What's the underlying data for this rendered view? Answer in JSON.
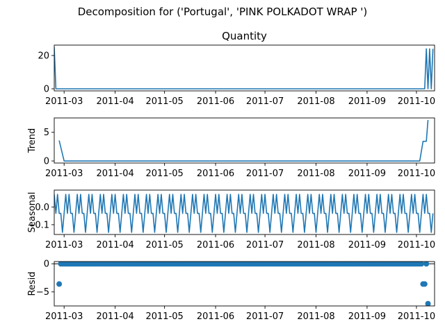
{
  "chart_data": {
    "type": "line",
    "title": "Decomposition for ('Portugal', 'PINK POLKADOT WRAP ')",
    "line_color": "#1f77b4",
    "x_range": [
      "2011-02-23",
      "2011-10-12"
    ],
    "x_tick_labels": [
      "2011-03",
      "2011-04",
      "2011-05",
      "2011-06",
      "2011-07",
      "2011-08",
      "2011-09",
      "2011-10"
    ],
    "x_ticks": [
      "2011-03-01",
      "2011-04-01",
      "2011-05-01",
      "2011-06-01",
      "2011-07-01",
      "2011-08-01",
      "2011-09-01",
      "2011-10-01"
    ],
    "panels": [
      {
        "id": "observed",
        "type": "line",
        "title": "Quantity",
        "ylabel": "",
        "ylim": [
          -1.25,
          26.25
        ],
        "yticks": [
          0,
          20
        ],
        "ytick_labels": [
          "0",
          "20"
        ],
        "x": [
          "2011-02-23",
          "2011-02-24",
          "2011-10-06",
          "2011-10-07",
          "2011-10-08",
          "2011-10-09",
          "2011-10-10",
          "2011-10-11"
        ],
        "values": [
          25,
          0,
          0,
          24,
          0,
          24,
          0,
          24
        ]
      },
      {
        "id": "trend",
        "type": "line",
        "ylabel": "Trend",
        "ylim": [
          -0.36,
          7.5
        ],
        "yticks": [
          0,
          5
        ],
        "ytick_labels": [
          "0",
          "5"
        ],
        "x": [
          "2011-02-26",
          "2011-03-01",
          "2011-10-03",
          "2011-10-05",
          "2011-10-06",
          "2011-10-07",
          "2011-10-08"
        ],
        "values": [
          3.57,
          0,
          0,
          3.43,
          3.43,
          3.43,
          7.14
        ]
      },
      {
        "id": "seasonal",
        "type": "line",
        "ylabel": "Seasonal",
        "ylim": [
          -0.155,
          0.095
        ],
        "yticks": [
          0.0,
          -0.1
        ],
        "ytick_labels": [
          "0.0",
          "−0.1"
        ],
        "period_days": 7,
        "weekly_pattern": [
          0.071,
          -0.036,
          0.071,
          -0.036,
          -0.036,
          -0.143,
          -0.036
        ],
        "x_start": "2011-02-23",
        "x_end": "2011-10-11"
      },
      {
        "id": "resid",
        "type": "scatter",
        "ylabel": "Resid",
        "ylim": [
          -7.5,
          0.4
        ],
        "yticks": [
          0,
          -5
        ],
        "ytick_labels": [
          "0",
          "−5"
        ],
        "x_start": "2011-02-26",
        "x_end": "2011-10-08",
        "baseline": 0,
        "outliers": [
          {
            "x": "2011-02-26",
            "y": -3.6
          },
          {
            "x": "2011-10-05",
            "y": -3.6
          },
          {
            "x": "2011-10-06",
            "y": -3.6
          },
          {
            "x": "2011-10-08",
            "y": -7.1
          }
        ]
      }
    ]
  }
}
